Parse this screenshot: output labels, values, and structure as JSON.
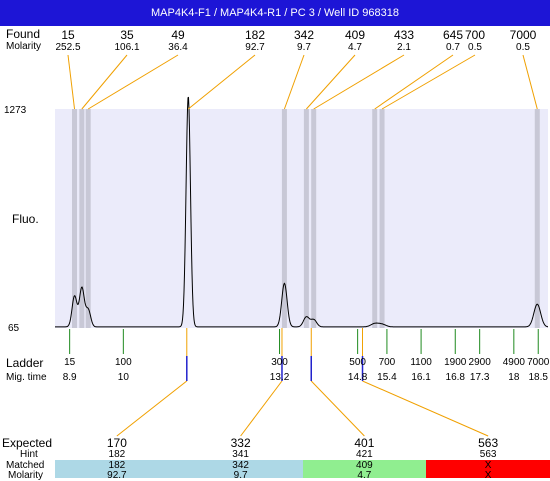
{
  "title": "MAP4K4-F1 / MAP4K4-R1 / PC 3 / Well ID 968318",
  "colors": {
    "title_bg": "#1d15d6",
    "plot_bg": "#ebebfa",
    "band": "#c8c8d6",
    "connector": "#f0a000",
    "ladder_tick": "#1f8a1f",
    "marker": "#2222cc",
    "matched_ok": "#add8e6",
    "matched_green": "#90ee90",
    "matched_red": "#ff0000"
  },
  "labels": {
    "found": "Found",
    "molarity": "Molarity",
    "fluo": "Fluo.",
    "ladder": "Ladder",
    "mig_time": "Mig. time",
    "expected": "Expected",
    "hint": "Hint",
    "matched": "Matched",
    "molarity_bottom": "Molarity"
  },
  "chart_data": {
    "type": "line",
    "title": "MAP4K4-F1 / MAP4K4-R1 / PC 3 / Well ID 968318",
    "ylabel": "Fluo.",
    "y_ticks": [
      "1273",
      "65"
    ],
    "ylim": [
      65,
      1273
    ],
    "mig_time_range": [
      8.6,
      18.7
    ],
    "found": [
      {
        "size": "15",
        "molarity": "252.5",
        "time": 9.0
      },
      {
        "size": "35",
        "molarity": "106.1",
        "time": 9.15
      },
      {
        "size": "49",
        "molarity": "36.4",
        "time": 9.28
      },
      {
        "size": "182",
        "molarity": "92.7",
        "time": 11.33
      },
      {
        "size": "342",
        "molarity": "9.7",
        "time": 13.3
      },
      {
        "size": "409",
        "molarity": "4.7",
        "time": 13.75
      },
      {
        "size": "433",
        "molarity": "2.1",
        "time": 13.9
      },
      {
        "size": "645",
        "molarity": "0.7",
        "time": 15.15
      },
      {
        "size": "700",
        "molarity": "0.5",
        "time": 15.3
      },
      {
        "size": "7000",
        "molarity": "0.5",
        "time": 18.48
      }
    ],
    "ladder": [
      {
        "size": "15",
        "time": "8.9",
        "t": 8.9
      },
      {
        "size": "100",
        "time": "10",
        "t": 10
      },
      {
        "size": "300",
        "time": "13.2",
        "t": 13.2
      },
      {
        "size": "500",
        "time": "14.8",
        "t": 14.8
      },
      {
        "size": "700",
        "time": "15.4",
        "t": 15.4
      },
      {
        "size": "1100",
        "time": "16.1",
        "t": 16.1
      },
      {
        "size": "1900",
        "time": "16.8",
        "t": 16.8
      },
      {
        "size": "2900",
        "time": "17.3",
        "t": 17.3
      },
      {
        "size": "4900",
        "time": "18",
        "t": 18
      },
      {
        "size": "7000",
        "time": "18.5",
        "t": 18.5
      }
    ],
    "expected": [
      {
        "expected": "170",
        "hint": "182",
        "matched": "182",
        "molarity": "92.7",
        "status": "ok",
        "time": 11.3
      },
      {
        "expected": "332",
        "hint": "341",
        "matched": "342",
        "molarity": "9.7",
        "status": "ok",
        "time": 13.25
      },
      {
        "expected": "401",
        "hint": "421",
        "matched": "409",
        "molarity": "4.7",
        "status": "green",
        "time": 13.85
      },
      {
        "expected": "563",
        "hint": "563",
        "matched": "X",
        "molarity": "X",
        "status": "red",
        "time": 14.9
      }
    ],
    "peaks": [
      {
        "time": 9.0,
        "height": 170,
        "width": 0.05
      },
      {
        "time": 9.15,
        "height": 215,
        "width": 0.05
      },
      {
        "time": 9.28,
        "height": 95,
        "width": 0.05
      },
      {
        "time": 11.33,
        "height": 1273,
        "width": 0.045
      },
      {
        "time": 13.3,
        "height": 240,
        "width": 0.055
      },
      {
        "time": 13.75,
        "height": 55,
        "width": 0.06
      },
      {
        "time": 13.9,
        "height": 40,
        "width": 0.06
      },
      {
        "time": 15.15,
        "height": 18,
        "width": 0.08
      },
      {
        "time": 15.3,
        "height": 14,
        "width": 0.08
      },
      {
        "time": 18.48,
        "height": 125,
        "width": 0.07
      }
    ]
  }
}
